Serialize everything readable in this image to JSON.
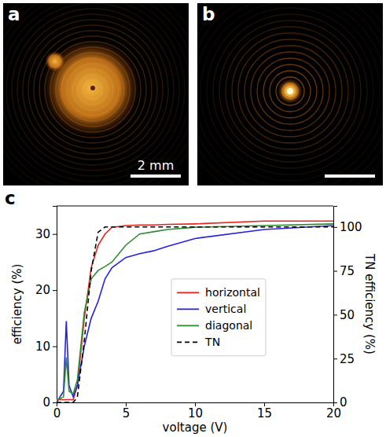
{
  "panels": [
    {
      "letter": "a",
      "scale_bar": "2 mm"
    },
    {
      "letter": "b"
    }
  ],
  "chart_data": {
    "type": "line",
    "panel_label": "c",
    "x_label": "voltage (V)",
    "y_label": "efficiency (%)",
    "y2_label": "TN efficiency (%)",
    "x": [
      0,
      0.5,
      0.7,
      0.9,
      1.2,
      1.5,
      2,
      2.5,
      3,
      3.5,
      4,
      5,
      6,
      7,
      8,
      10,
      15,
      20
    ],
    "series": [
      {
        "name": "horizontal",
        "color": "#e8231f",
        "line_style": "solid",
        "values": [
          0.5,
          0.5,
          0.5,
          0.5,
          0.5,
          3,
          15,
          24,
          28,
          30,
          31.2,
          31.5,
          31.6,
          31.6,
          31.7,
          31.8,
          32.3,
          32.3
        ]
      },
      {
        "name": "vertical",
        "color": "#2323e0",
        "line_style": "solid",
        "values": [
          0,
          2,
          14.5,
          3,
          1,
          3,
          10,
          15,
          18,
          22,
          24,
          25.8,
          26.5,
          27,
          27.8,
          29.2,
          30.8,
          31.5
        ]
      },
      {
        "name": "diagonal",
        "color": "#2e8b2e",
        "line_style": "solid",
        "values": [
          0.3,
          1,
          8,
          2,
          1.5,
          4,
          16,
          22,
          23.5,
          24.2,
          25,
          28,
          30,
          30.4,
          30.8,
          31.2,
          31.5,
          31.8
        ]
      },
      {
        "name": "TN",
        "color": "#000000",
        "line_style": "dashed",
        "axis": "y2",
        "values": [
          0,
          0,
          0,
          0,
          0,
          3,
          35,
          75,
          97,
          100,
          100,
          100,
          100,
          100,
          100,
          100,
          100,
          100
        ]
      }
    ],
    "xlim": [
      0,
      20
    ],
    "xticks": [
      0,
      5,
      10,
      15,
      20
    ],
    "ylim": [
      0,
      35
    ],
    "yticks": [
      0,
      10,
      20,
      30
    ],
    "y2lim": [
      0,
      112
    ],
    "y2ticks": [
      0,
      25,
      50,
      75,
      100
    ],
    "legend": "right",
    "grid": false
  }
}
